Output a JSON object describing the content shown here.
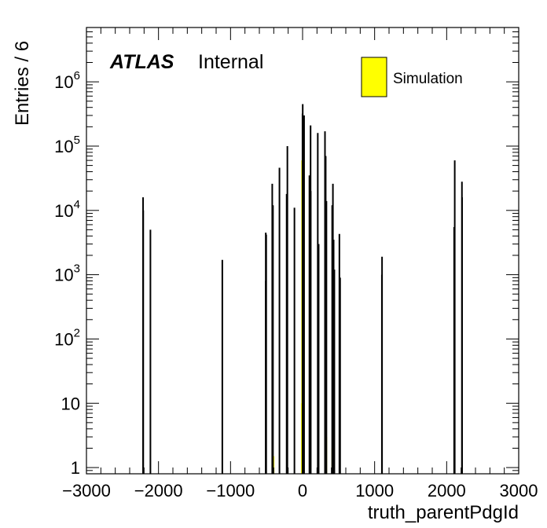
{
  "chart_data": {
    "type": "bar",
    "style": "histogram",
    "xlabel": "truth_parentPdgId",
    "ylabel": "Entries / 6",
    "xlim": [
      -3000,
      3000
    ],
    "ylim": [
      0.8,
      7000000
    ],
    "log_y": true,
    "grid": false,
    "x_ticks": [
      {
        "value": -3000,
        "label": "−3000"
      },
      {
        "value": -2000,
        "label": "−2000"
      },
      {
        "value": -1000,
        "label": "−1000"
      },
      {
        "value": 0,
        "label": "0"
      },
      {
        "value": 1000,
        "label": "1000"
      },
      {
        "value": 2000,
        "label": "2000"
      },
      {
        "value": 3000,
        "label": "3000"
      }
    ],
    "y_ticks": [
      {
        "value": 1,
        "base": "1",
        "exp": ""
      },
      {
        "value": 10,
        "base": "10",
        "exp": ""
      },
      {
        "value": 100,
        "base": "10",
        "exp": "2"
      },
      {
        "value": 1000,
        "base": "10",
        "exp": "3"
      },
      {
        "value": 10000,
        "base": "10",
        "exp": "4"
      },
      {
        "value": 100000,
        "base": "10",
        "exp": "5"
      },
      {
        "value": 1000000,
        "base": "10",
        "exp": "6"
      }
    ],
    "annotation": {
      "experiment": "ATLAS",
      "status": "Internal"
    },
    "legend": {
      "position": "top-right",
      "entries": [
        {
          "label": "Simulation",
          "color": "#ffff00"
        }
      ]
    },
    "series": [
      {
        "name": "Simulation",
        "color": "#ffff00",
        "bins": [
          {
            "x": -2214,
            "y": 16000
          },
          {
            "x": -2212,
            "y": 10000
          },
          {
            "x": -2112,
            "y": 5000
          },
          {
            "x": -1114,
            "y": 1700
          },
          {
            "x": -511,
            "y": 4500
          },
          {
            "x": -505,
            "y": 4200
          },
          {
            "x": -511,
            "y": 800
          },
          {
            "x": -421,
            "y": 26000
          },
          {
            "x": -411,
            "y": 12000
          },
          {
            "x": -321,
            "y": 46000
          },
          {
            "x": -221,
            "y": 18000
          },
          {
            "x": -211,
            "y": 100000
          },
          {
            "x": -113,
            "y": 11000
          },
          {
            "x": -1,
            "y": 320000
          },
          {
            "x": 2,
            "y": 450000
          },
          {
            "x": 5,
            "y": 130000
          },
          {
            "x": 21,
            "y": 300000
          },
          {
            "x": 15,
            "y": 90000
          },
          {
            "x": 95,
            "y": 35000
          },
          {
            "x": 111,
            "y": 210000
          },
          {
            "x": 113,
            "y": 20000
          },
          {
            "x": 211,
            "y": 160000
          },
          {
            "x": 213,
            "y": 1500
          },
          {
            "x": 223,
            "y": 3000
          },
          {
            "x": 311,
            "y": 170000
          },
          {
            "x": 321,
            "y": 70000
          },
          {
            "x": 331,
            "y": 14000
          },
          {
            "x": 411,
            "y": 12000
          },
          {
            "x": 421,
            "y": 26000
          },
          {
            "x": 431,
            "y": 3500
          },
          {
            "x": 441,
            "y": 1200
          },
          {
            "x": 511,
            "y": 4300
          },
          {
            "x": 521,
            "y": 900
          },
          {
            "x": 1103,
            "y": 1900
          },
          {
            "x": 1101,
            "y": 1000
          },
          {
            "x": 2112,
            "y": 60000
          },
          {
            "x": 2104,
            "y": 5500
          },
          {
            "x": 2212,
            "y": 28000
          },
          {
            "x": 2214,
            "y": 16000
          }
        ],
        "filled_bins": [
          {
            "x": -411,
            "y": 1.5
          },
          {
            "x": -3,
            "y": 10
          },
          {
            "x": 1,
            "y": 60000
          },
          {
            "x": 3,
            "y": 15
          },
          {
            "x": 321,
            "y": 3
          },
          {
            "x": 421,
            "y": 2
          }
        ]
      }
    ]
  }
}
